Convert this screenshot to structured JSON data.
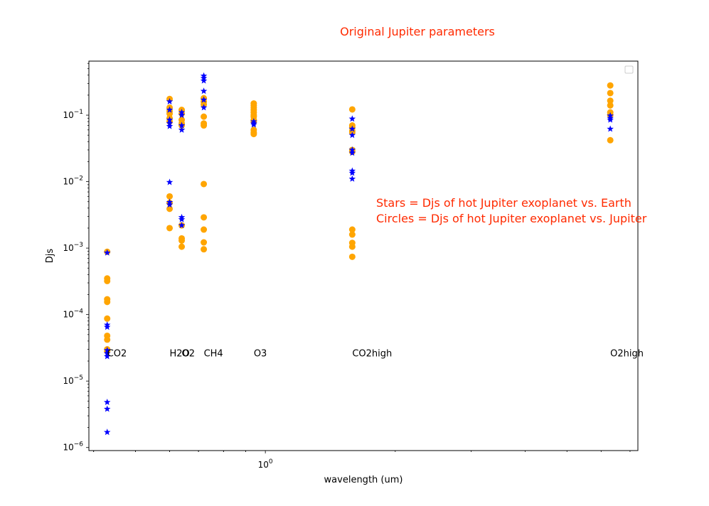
{
  "chart_data": {
    "type": "scatter",
    "title": "Original Jupiter parameters",
    "xlabel": "wavelength (um)",
    "ylabel": "Djs",
    "xscale": "log",
    "yscale": "log",
    "xlim": [
      0.39,
      7.3
    ],
    "ylim": [
      9e-07,
      0.65
    ],
    "y_ticks": [
      {
        "value": 1e-06,
        "base": "10",
        "exp": "−6"
      },
      {
        "value": 1e-05,
        "base": "10",
        "exp": "−5"
      },
      {
        "value": 0.0001,
        "base": "10",
        "exp": "−4"
      },
      {
        "value": 0.001,
        "base": "10",
        "exp": "−3"
      },
      {
        "value": 0.01,
        "base": "10",
        "exp": "−2"
      },
      {
        "value": 0.1,
        "base": "10",
        "exp": "−1"
      }
    ],
    "x_ticks": [
      {
        "value": 1,
        "base": "10",
        "exp": "0"
      }
    ],
    "annotations": [
      {
        "text": "Stars = Djs of hot Jupiter exoplanet vs. Earth",
        "color": "#ff2a00"
      },
      {
        "text": "Circles = Djs of hot Jupiter exoplanet vs. Jupiter",
        "color": "#ff2a00"
      }
    ],
    "legend": {
      "placement": "top-right",
      "entries": []
    },
    "molecules": [
      {
        "label": "CO2",
        "wavelength": 0.43
      },
      {
        "label": "H2O",
        "wavelength": 0.6
      },
      {
        "label": "O2",
        "wavelength": 0.64
      },
      {
        "label": "CH4",
        "wavelength": 0.72
      },
      {
        "label": "O3",
        "wavelength": 0.94
      },
      {
        "label": "CO2high",
        "wavelength": 1.59
      },
      {
        "label": "O2high",
        "wavelength": 6.3
      }
    ],
    "label_y": 2.6e-05,
    "series": [
      {
        "marker": "circle",
        "color": "#ffa500",
        "points": [
          [
            0.43,
            0.00088
          ],
          [
            0.43,
            0.00035
          ],
          [
            0.43,
            0.00032
          ],
          [
            0.43,
            0.00017
          ],
          [
            0.43,
            0.000155
          ],
          [
            0.43,
            8.7e-05
          ],
          [
            0.43,
            4.8e-05
          ],
          [
            0.43,
            4.2e-05
          ],
          [
            0.43,
            3e-05
          ],
          [
            0.43,
            2.8e-05
          ],
          [
            0.6,
            0.175
          ],
          [
            0.6,
            0.13
          ],
          [
            0.6,
            0.115
          ],
          [
            0.6,
            0.105
          ],
          [
            0.6,
            0.09
          ],
          [
            0.6,
            0.08
          ],
          [
            0.6,
            0.006
          ],
          [
            0.6,
            0.0048
          ],
          [
            0.6,
            0.0039
          ],
          [
            0.6,
            0.002
          ],
          [
            0.64,
            0.12
          ],
          [
            0.64,
            0.105
          ],
          [
            0.64,
            0.085
          ],
          [
            0.64,
            0.075
          ],
          [
            0.64,
            0.07
          ],
          [
            0.64,
            0.0022
          ],
          [
            0.64,
            0.0014
          ],
          [
            0.64,
            0.0013
          ],
          [
            0.64,
            0.00105
          ],
          [
            0.72,
            0.18
          ],
          [
            0.72,
            0.16
          ],
          [
            0.72,
            0.145
          ],
          [
            0.72,
            0.095
          ],
          [
            0.72,
            0.075
          ],
          [
            0.72,
            0.07
          ],
          [
            0.72,
            0.0092
          ],
          [
            0.72,
            0.0029
          ],
          [
            0.72,
            0.0019
          ],
          [
            0.72,
            0.00122
          ],
          [
            0.72,
            0.00096
          ],
          [
            0.94,
            0.15
          ],
          [
            0.94,
            0.14
          ],
          [
            0.94,
            0.13
          ],
          [
            0.94,
            0.12
          ],
          [
            0.94,
            0.11
          ],
          [
            0.94,
            0.1
          ],
          [
            0.94,
            0.095
          ],
          [
            0.94,
            0.085
          ],
          [
            0.94,
            0.08
          ],
          [
            0.94,
            0.06
          ],
          [
            0.94,
            0.055
          ],
          [
            0.94,
            0.052
          ],
          [
            1.59,
            0.122
          ],
          [
            1.59,
            0.07
          ],
          [
            1.59,
            0.065
          ],
          [
            1.59,
            0.058
          ],
          [
            1.59,
            0.055
          ],
          [
            1.59,
            0.03
          ],
          [
            1.59,
            0.028
          ],
          [
            1.59,
            0.0019
          ],
          [
            1.59,
            0.0016
          ],
          [
            1.59,
            0.0012
          ],
          [
            1.59,
            0.00105
          ],
          [
            1.59,
            0.00074
          ],
          [
            6.3,
            0.28
          ],
          [
            6.3,
            0.215
          ],
          [
            6.3,
            0.165
          ],
          [
            6.3,
            0.14
          ],
          [
            6.3,
            0.11
          ],
          [
            6.3,
            0.1
          ],
          [
            6.3,
            0.042
          ]
        ]
      },
      {
        "marker": "star",
        "color": "#0000ff",
        "points": [
          [
            0.43,
            0.00085
          ],
          [
            0.43,
            7e-05
          ],
          [
            0.43,
            6.5e-05
          ],
          [
            0.43,
            2.9e-05
          ],
          [
            0.43,
            2.6e-05
          ],
          [
            0.43,
            2.35e-05
          ],
          [
            0.43,
            4.8e-06
          ],
          [
            0.43,
            3.8e-06
          ],
          [
            0.43,
            1.7e-06
          ],
          [
            0.6,
            0.16
          ],
          [
            0.6,
            0.12
          ],
          [
            0.6,
            0.085
          ],
          [
            0.6,
            0.075
          ],
          [
            0.6,
            0.068
          ],
          [
            0.6,
            0.0098
          ],
          [
            0.6,
            0.0049
          ],
          [
            0.6,
            0.0045
          ],
          [
            0.64,
            0.11
          ],
          [
            0.64,
            0.1
          ],
          [
            0.64,
            0.07
          ],
          [
            0.64,
            0.06
          ],
          [
            0.64,
            0.0029
          ],
          [
            0.64,
            0.0027
          ],
          [
            0.64,
            0.0022
          ],
          [
            0.72,
            0.39
          ],
          [
            0.72,
            0.36
          ],
          [
            0.72,
            0.33
          ],
          [
            0.72,
            0.23
          ],
          [
            0.72,
            0.17
          ],
          [
            0.72,
            0.13
          ],
          [
            0.94,
            0.08
          ],
          [
            0.94,
            0.075
          ],
          [
            0.94,
            0.072
          ],
          [
            1.59,
            0.088
          ],
          [
            1.59,
            0.062
          ],
          [
            1.59,
            0.05
          ],
          [
            1.59,
            0.03
          ],
          [
            1.59,
            0.027
          ],
          [
            1.59,
            0.0145
          ],
          [
            1.59,
            0.0135
          ],
          [
            1.59,
            0.011
          ],
          [
            6.3,
            0.098
          ],
          [
            6.3,
            0.09
          ],
          [
            6.3,
            0.085
          ],
          [
            6.3,
            0.062
          ]
        ]
      }
    ]
  }
}
